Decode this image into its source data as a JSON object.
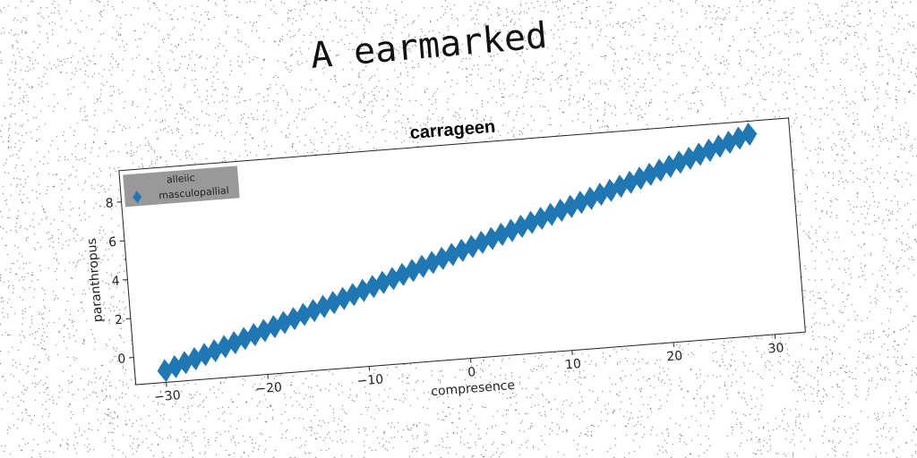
{
  "figure": {
    "suptitle": "A earmarked"
  },
  "chart_data": {
    "type": "scatter",
    "title": "carrageen",
    "xlabel": "compresence",
    "ylabel": "paranthropus",
    "xlim": [
      -33,
      33
    ],
    "ylim": [
      -1.4,
      9.6
    ],
    "xticks": [
      -30,
      -20,
      -10,
      0,
      10,
      20,
      30
    ],
    "yticks": [
      0,
      2,
      4,
      6,
      8
    ],
    "xtick_labels": [
      "−30",
      "−20",
      "−10",
      "0",
      "10",
      "20",
      "30"
    ],
    "ytick_labels": [
      "0",
      "2",
      "4",
      "6",
      "8"
    ],
    "grid": false,
    "legend": {
      "placement": "top-left",
      "title": "alleiic",
      "entries": [
        "masculopallial"
      ]
    },
    "series": [
      {
        "name": "masculopallial",
        "marker": "diamond",
        "color": "#1f77b4",
        "x": [
          -30,
          -29,
          -28,
          -27,
          -26,
          -25,
          -24,
          -23,
          -22,
          -21,
          -20,
          -19,
          -18,
          -17,
          -16,
          -15,
          -14,
          -13,
          -12,
          -11,
          -10,
          -9,
          -8,
          -7,
          -6,
          -5,
          -4,
          -3,
          -2,
          -1,
          0,
          1,
          2,
          3,
          4,
          5,
          6,
          7,
          8,
          9,
          10,
          11,
          12,
          13,
          14,
          15,
          16,
          17,
          18,
          19,
          20,
          21,
          22,
          23,
          24,
          25,
          26,
          27,
          28,
          29
        ],
        "y": [
          -0.8,
          -0.64,
          -0.47,
          -0.31,
          -0.14,
          0.02,
          0.19,
          0.35,
          0.52,
          0.68,
          0.85,
          1.01,
          1.18,
          1.34,
          1.51,
          1.67,
          1.84,
          2.0,
          2.17,
          2.33,
          2.5,
          2.66,
          2.83,
          2.99,
          3.16,
          3.32,
          3.49,
          3.65,
          3.82,
          3.98,
          4.15,
          4.31,
          4.48,
          4.64,
          4.81,
          4.97,
          5.14,
          5.3,
          5.47,
          5.63,
          5.8,
          5.96,
          6.13,
          6.29,
          6.46,
          6.62,
          6.79,
          6.95,
          7.12,
          7.28,
          7.45,
          7.61,
          7.78,
          7.94,
          8.11,
          8.27,
          8.44,
          8.6,
          8.77,
          8.93
        ]
      }
    ]
  }
}
